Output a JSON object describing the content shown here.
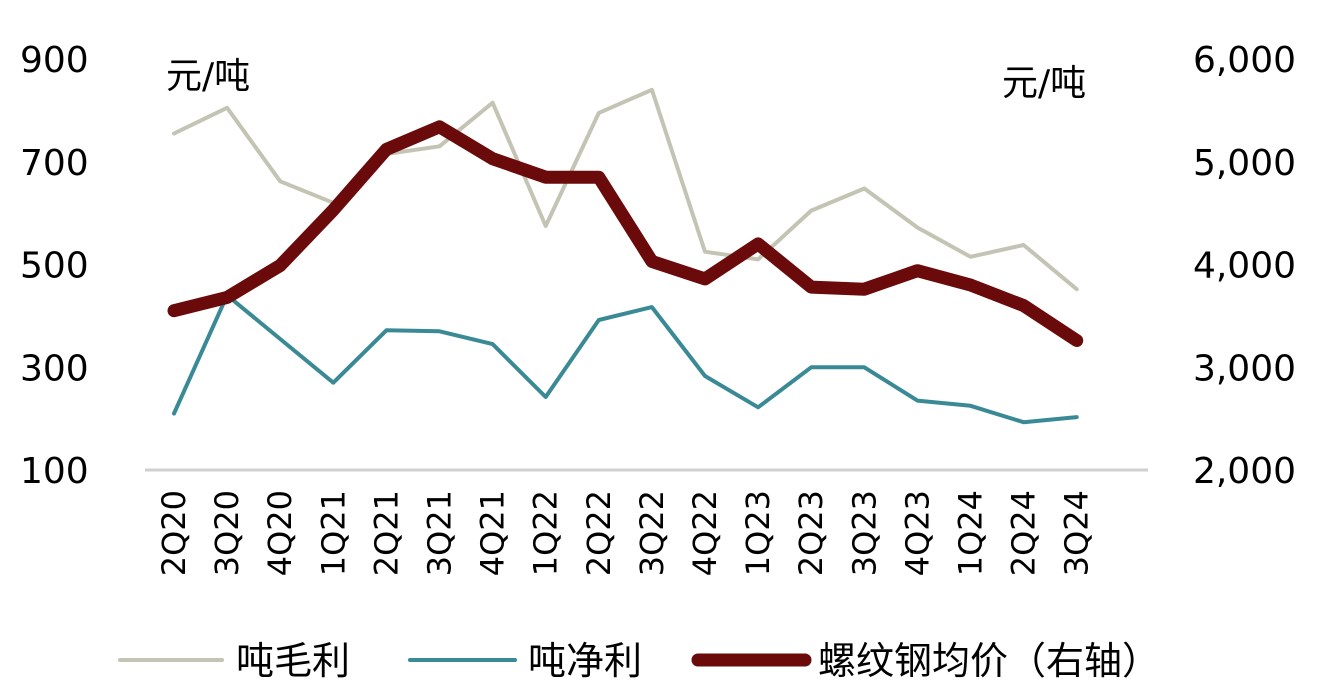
{
  "chart_data": {
    "type": "line",
    "categories": [
      "2Q20",
      "3Q20",
      "4Q20",
      "1Q21",
      "2Q21",
      "3Q21",
      "4Q21",
      "1Q22",
      "2Q22",
      "3Q22",
      "4Q22",
      "1Q23",
      "2Q23",
      "3Q23",
      "4Q23",
      "1Q24",
      "2Q24",
      "3Q24"
    ],
    "left_axis": {
      "unit": "元/吨",
      "ticks": [
        "900",
        "700",
        "500",
        "300",
        "100"
      ],
      "tick_values": [
        900,
        700,
        500,
        300,
        100
      ],
      "ylim": [
        100,
        900
      ]
    },
    "right_axis": {
      "unit": "元/吨",
      "ticks": [
        "6,000",
        "5,000",
        "4,000",
        "3,000",
        "2,000"
      ],
      "tick_values": [
        6000,
        5000,
        4000,
        3000,
        2000
      ],
      "ylim": [
        2000,
        6000
      ]
    },
    "series": [
      {
        "name": "吨毛利",
        "axis": "left",
        "color": "#c4c4b4",
        "values": [
          755,
          805,
          662,
          620,
          715,
          730,
          815,
          575,
          795,
          840,
          525,
          510,
          605,
          648,
          572,
          515,
          538,
          452
        ]
      },
      {
        "name": "吨净利",
        "axis": "left",
        "color": "#3a8a95",
        "values": [
          210,
          440,
          355,
          270,
          372,
          370,
          345,
          242,
          392,
          417,
          283,
          222,
          300,
          300,
          235,
          225,
          193,
          203
        ]
      },
      {
        "name": "螺纹钢均价（右轴）",
        "axis": "right",
        "color": "#6b0a0a",
        "values": [
          3550,
          3680,
          3990,
          4530,
          5120,
          5340,
          5030,
          4850,
          4850,
          4030,
          3860,
          4200,
          3780,
          3760,
          3940,
          3800,
          3600,
          3260
        ]
      }
    ],
    "legend_position": "bottom",
    "grid": false
  }
}
